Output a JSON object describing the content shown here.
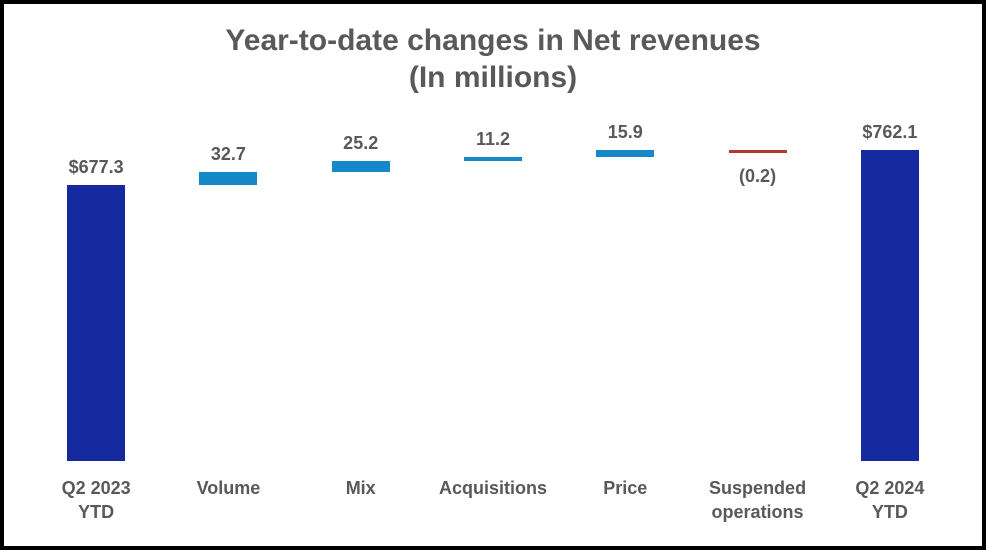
{
  "chart_data": {
    "type": "bar",
    "subtype": "waterfall",
    "title": "Year-to-date changes in Net revenues",
    "subtitle": "(In millions)",
    "baseline": 0,
    "ylim": [
      0,
      800
    ],
    "grid": false,
    "legend": false,
    "axes_visible": false,
    "categories": [
      "Q2 2023 YTD",
      "Volume",
      "Mix",
      "Acquisitions",
      "Price",
      "Suspended operations",
      "Q2 2024 YTD"
    ],
    "columns": [
      {
        "category": "Q2 2023 YTD",
        "label": "Q2 2023\nYTD",
        "value": 677.3,
        "display": "$677.3",
        "kind": "total"
      },
      {
        "category": "Volume",
        "label": "Volume",
        "value": 32.7,
        "display": "32.7",
        "kind": "increase"
      },
      {
        "category": "Mix",
        "label": "Mix",
        "value": 25.2,
        "display": "25.2",
        "kind": "increase"
      },
      {
        "category": "Acquisitions",
        "label": "Acquisitions",
        "value": 11.2,
        "display": "11.2",
        "kind": "increase"
      },
      {
        "category": "Price",
        "label": "Price",
        "value": 15.9,
        "display": "15.9",
        "kind": "increase"
      },
      {
        "category": "Suspended operations",
        "label": "Suspended\noperations",
        "value": -0.2,
        "display": "(0.2)",
        "kind": "decrease"
      },
      {
        "category": "Q2 2024 YTD",
        "label": "Q2 2024\nYTD",
        "value": 762.1,
        "display": "$762.1",
        "kind": "total"
      }
    ],
    "colors": {
      "total": "#152a9e",
      "increase": "#1588c8",
      "decrease": "#b03a2e",
      "text": "#595959",
      "background": "#ffffff",
      "border": "#000000"
    }
  }
}
